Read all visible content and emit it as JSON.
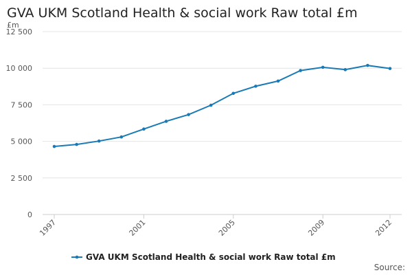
{
  "chart_data": {
    "type": "line",
    "title": "GVA UKM Scotland Health & social work Raw total £m",
    "ylabel": "£m",
    "xlabel": "",
    "x": [
      1997,
      1998,
      1999,
      2000,
      2001,
      2002,
      2003,
      2004,
      2005,
      2006,
      2007,
      2008,
      2009,
      2010,
      2011,
      2012
    ],
    "x_tick_labels": [
      "1997",
      "2001",
      "2005",
      "2009",
      "2012"
    ],
    "y_tick_labels": [
      "0",
      "2 500",
      "5 000",
      "7 500",
      "10 000",
      "12 500"
    ],
    "ylim": [
      0,
      12500
    ],
    "grid": true,
    "legend_position": "bottom-center",
    "series": [
      {
        "name": "GVA UKM Scotland Health & social work Raw total £m",
        "color": "#1a7ab5",
        "values": [
          4650,
          4790,
          5020,
          5300,
          5840,
          6370,
          6830,
          7470,
          8280,
          8770,
          9120,
          9840,
          10060,
          9900,
          10190,
          9980
        ]
      }
    ],
    "source_label": "Source:"
  }
}
